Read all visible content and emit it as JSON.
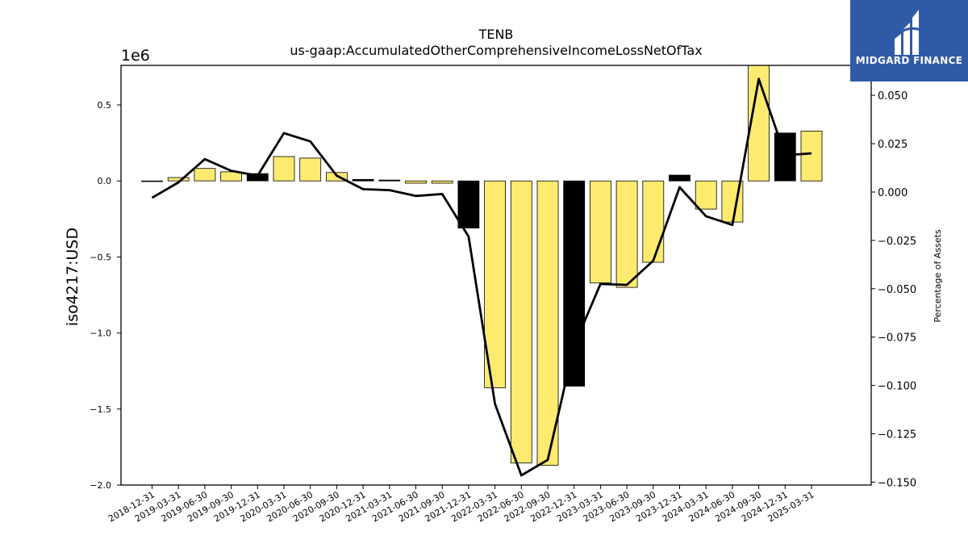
{
  "chart_data": {
    "type": "bar",
    "title": "TENB",
    "subtitle": "us-gaap:AccumulatedOtherComprehensiveIncomeLossNetOfTax",
    "ylabel": "iso4217:USD",
    "y2label": "Percentage of Assets",
    "y_offset_label": "1e6",
    "ylim": [
      -2000000,
      760000
    ],
    "y2lim": [
      -0.1515,
      0.0655
    ],
    "y_ticks": [
      -2000000,
      -1500000,
      -1000000,
      -500000,
      0,
      500000
    ],
    "y_tick_labels": [
      "−2.0",
      "−1.5",
      "−1.0",
      "−0.5",
      "0.0",
      "0.5"
    ],
    "y2_ticks": [
      -0.15,
      -0.125,
      -0.1,
      -0.075,
      -0.05,
      -0.025,
      0,
      0.025,
      0.05
    ],
    "y2_tick_labels": [
      "−0.150",
      "−0.125",
      "−0.100",
      "−0.075",
      "−0.050",
      "−0.025",
      "0.000",
      "0.025",
      "0.050"
    ],
    "categories": [
      "2018-12-31",
      "2019-03-31",
      "2019-06-30",
      "2019-09-30",
      "2019-12-31",
      "2020-03-31",
      "2020-06-30",
      "2020-09-30",
      "2020-12-31",
      "2021-03-31",
      "2021-06-30",
      "2021-09-30",
      "2021-12-31",
      "2022-03-31",
      "2022-06-30",
      "2022-09-30",
      "2022-12-31",
      "2023-03-31",
      "2023-06-30",
      "2023-09-30",
      "2023-12-31",
      "2024-03-31",
      "2024-06-30",
      "2024-09-30",
      "2024-12-31",
      "2025-03-31"
    ],
    "series": [
      {
        "type": "bar",
        "values": [
          -2000,
          22000,
          82000,
          60000,
          48000,
          160000,
          150000,
          55000,
          10000,
          6000,
          -15000,
          -15000,
          -310000,
          -1360000,
          -1855000,
          -1870000,
          -1350000,
          -670000,
          -700000,
          -535000,
          38000,
          -185000,
          -270000,
          760000,
          315000,
          328000
        ],
        "highlight": [
          false,
          false,
          false,
          false,
          true,
          false,
          false,
          false,
          true,
          true,
          false,
          false,
          true,
          false,
          false,
          false,
          true,
          false,
          false,
          false,
          true,
          false,
          false,
          false,
          true,
          false
        ]
      },
      {
        "type": "line",
        "axis": "right",
        "values": [
          -0.003,
          0.005,
          0.017,
          0.011,
          0.0085,
          0.0305,
          0.0262,
          0.0085,
          0.0015,
          0.001,
          -0.002,
          -0.001,
          -0.023,
          -0.1095,
          -0.1465,
          -0.1385,
          -0.0795,
          -0.0475,
          -0.048,
          -0.0355,
          0.0025,
          -0.0125,
          -0.017,
          0.0585,
          0.019,
          0.02
        ]
      }
    ],
    "colors": {
      "bar": "#fdeb70",
      "bar_highlight": "#000000",
      "line": "#000000"
    },
    "grid": false
  },
  "logo": {
    "text": "MIDGARD FINANCE",
    "icon": "midgard-logo-icon",
    "background": "#2f5aa8"
  }
}
